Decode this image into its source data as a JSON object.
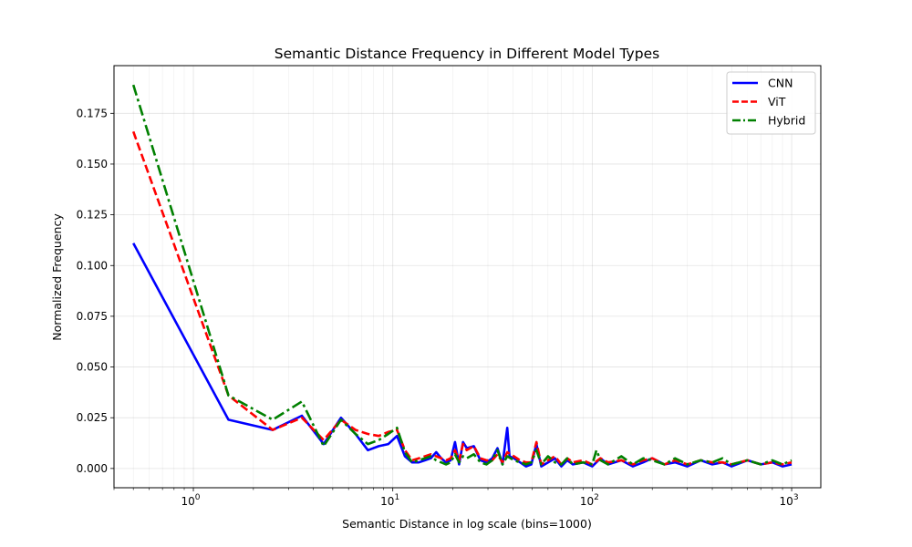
{
  "chart_data": {
    "type": "line",
    "title": "Semantic Distance Frequency in Different Model Types",
    "xlabel": "Semantic Distance in log scale (bins=1000)",
    "ylabel": "Normalized Frequency",
    "xscale": "log",
    "xlim": [
      0.4,
      1400
    ],
    "ylim": [
      -0.0095,
      0.1985
    ],
    "yticks": [
      "0.000",
      "0.025",
      "0.050",
      "0.075",
      "0.100",
      "0.125",
      "0.150",
      "0.175"
    ],
    "ytick_values": [
      0,
      0.025,
      0.05,
      0.075,
      0.1,
      0.125,
      0.15,
      0.175
    ],
    "xticks": [
      {
        "value": 1,
        "base": "10",
        "exp": "0"
      },
      {
        "value": 10,
        "base": "10",
        "exp": "1"
      },
      {
        "value": 100,
        "base": "10",
        "exp": "2"
      },
      {
        "value": 1000,
        "base": "10",
        "exp": "3"
      }
    ],
    "grid": true,
    "legend_position": "top-right",
    "series": [
      {
        "name": "CNN",
        "color": "#0000ff",
        "dash": "solid",
        "x": [
          0.5,
          1.5,
          2.5,
          3.5,
          4.5,
          5.5,
          6.5,
          7.5,
          8.5,
          9.5,
          10.5,
          11.5,
          12.5,
          13.5,
          14.5,
          15.5,
          16.5,
          17.5,
          18.5,
          19.5,
          20.5,
          21.5,
          22.5,
          23.5,
          25.5,
          27.5,
          29.5,
          31.5,
          33.5,
          35.5,
          37.5,
          38.5,
          40.5,
          43.5,
          46.5,
          49.5,
          52.5,
          55.5,
          60,
          65,
          70,
          75,
          80,
          90,
          100,
          110,
          120,
          140,
          160,
          180,
          200,
          230,
          260,
          300,
          350,
          400,
          450,
          500,
          600,
          700,
          800,
          900,
          1000
        ],
        "y": [
          0.111,
          0.024,
          0.019,
          0.026,
          0.012,
          0.025,
          0.017,
          0.009,
          0.011,
          0.012,
          0.016,
          0.006,
          0.003,
          0.003,
          0.004,
          0.005,
          0.008,
          0.005,
          0.003,
          0.004,
          0.013,
          0.002,
          0.013,
          0.01,
          0.011,
          0.004,
          0.003,
          0.005,
          0.01,
          0.002,
          0.02,
          0.006,
          0.005,
          0.003,
          0.001,
          0.002,
          0.012,
          0.001,
          0.003,
          0.005,
          0.001,
          0.004,
          0.002,
          0.003,
          0.001,
          0.005,
          0.002,
          0.004,
          0.001,
          0.003,
          0.005,
          0.002,
          0.003,
          0.001,
          0.004,
          0.002,
          0.003,
          0.001,
          0.004,
          0.002,
          0.003,
          0.001,
          0.002
        ]
      },
      {
        "name": "ViT",
        "color": "#ff0000",
        "dash": "dashed",
        "x": [
          0.5,
          1.5,
          2.5,
          3.5,
          4.5,
          5.5,
          6.5,
          7.5,
          8.5,
          9.5,
          10.5,
          11.5,
          12.5,
          13.5,
          14.5,
          15.5,
          16.5,
          17.5,
          18.5,
          19.5,
          20.5,
          21.5,
          22.5,
          23.5,
          25.5,
          27.5,
          29.5,
          31.5,
          33.5,
          35.5,
          37.5,
          40.5,
          43.5,
          46.5,
          49.5,
          52.5,
          55.5,
          60,
          65,
          70,
          75,
          80,
          90,
          100,
          110,
          120,
          140,
          160,
          180,
          200,
          230,
          260,
          300,
          350,
          400,
          450,
          500,
          600,
          700,
          800,
          900,
          1000
        ],
        "y": [
          0.166,
          0.036,
          0.019,
          0.025,
          0.014,
          0.024,
          0.019,
          0.017,
          0.016,
          0.018,
          0.019,
          0.009,
          0.004,
          0.005,
          0.006,
          0.007,
          0.006,
          0.005,
          0.004,
          0.005,
          0.009,
          0.004,
          0.012,
          0.009,
          0.011,
          0.005,
          0.004,
          0.004,
          0.007,
          0.003,
          0.008,
          0.006,
          0.004,
          0.003,
          0.003,
          0.013,
          0.002,
          0.004,
          0.006,
          0.002,
          0.005,
          0.003,
          0.004,
          0.002,
          0.005,
          0.003,
          0.004,
          0.002,
          0.004,
          0.005,
          0.002,
          0.004,
          0.002,
          0.004,
          0.003,
          0.003,
          0.002,
          0.004,
          0.002,
          0.003,
          0.002,
          0.003
        ]
      },
      {
        "name": "Hybrid",
        "color": "#008000",
        "dash": "dashdot",
        "x": [
          0.5,
          1.5,
          2.5,
          3.5,
          4.5,
          5.5,
          6.5,
          7.5,
          8.5,
          9.5,
          10.5,
          11.5,
          12.5,
          13.5,
          14.5,
          15.5,
          16.5,
          17.5,
          18.5,
          19.5,
          20.5,
          21.5,
          22.5,
          23.5,
          25.5,
          27.5,
          29.5,
          31.5,
          33.5,
          35.5,
          37.5,
          40.5,
          43.5,
          46.5,
          49.5,
          52.5,
          55.5,
          60,
          65,
          70,
          75,
          80,
          90,
          100,
          105,
          110,
          120,
          140,
          160,
          180,
          200,
          230,
          260,
          300,
          350,
          400,
          450,
          500,
          600,
          700,
          800,
          900,
          1000
        ],
        "y": [
          0.189,
          0.036,
          0.024,
          0.033,
          0.011,
          0.024,
          0.017,
          0.012,
          0.014,
          0.017,
          0.02,
          0.008,
          0.003,
          0.004,
          0.005,
          0.006,
          0.004,
          0.003,
          0.002,
          0.003,
          0.007,
          0.003,
          0.006,
          0.005,
          0.007,
          0.003,
          0.002,
          0.004,
          0.009,
          0.002,
          0.006,
          0.004,
          0.003,
          0.002,
          0.003,
          0.009,
          0.002,
          0.006,
          0.003,
          0.002,
          0.005,
          0.002,
          0.003,
          0.002,
          0.009,
          0.004,
          0.002,
          0.006,
          0.002,
          0.005,
          0.004,
          0.002,
          0.005,
          0.002,
          0.004,
          0.003,
          0.005,
          0.002,
          0.004,
          0.002,
          0.004,
          0.002,
          0.004
        ]
      }
    ]
  }
}
